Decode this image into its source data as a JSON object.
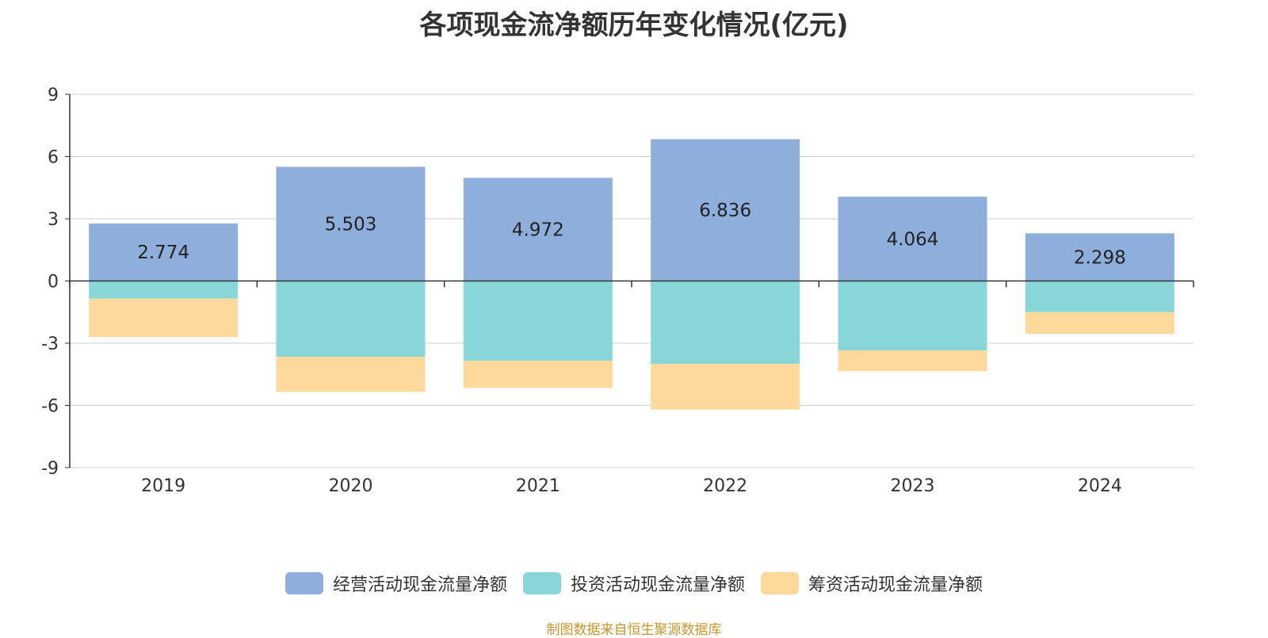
{
  "title": "各项现金流净额历年变化情况(亿元)",
  "source": "制图数据来自恒生聚源数据库",
  "colors": {
    "operating": "#8eaedb",
    "investing": "#88d6d8",
    "financing": "#fed99b"
  },
  "chart_data": {
    "type": "bar",
    "stacked": true,
    "title": "各项现金流净额历年变化情况(亿元)",
    "categories": [
      "2019",
      "2020",
      "2021",
      "2022",
      "2023",
      "2024"
    ],
    "ylim": [
      -9,
      9
    ],
    "yticks": [
      9,
      6,
      3,
      0,
      -3,
      -6,
      -9
    ],
    "grid": true,
    "legend_position": "bottom",
    "series": [
      {
        "name": "经营活动现金流量净额",
        "values": [
          2.774,
          5.503,
          4.972,
          6.836,
          4.064,
          2.298
        ],
        "labels": [
          "2.774",
          "5.503",
          "4.972",
          "6.836",
          "4.064",
          "2.298"
        ]
      },
      {
        "name": "投资活动现金流量净额",
        "values": [
          -0.85,
          -3.65,
          -3.85,
          -4.0,
          -3.35,
          -1.5
        ]
      },
      {
        "name": "筹资活动现金流量净额",
        "values": [
          -1.85,
          -1.7,
          -1.3,
          -2.2,
          -1.0,
          -1.05
        ]
      }
    ]
  }
}
